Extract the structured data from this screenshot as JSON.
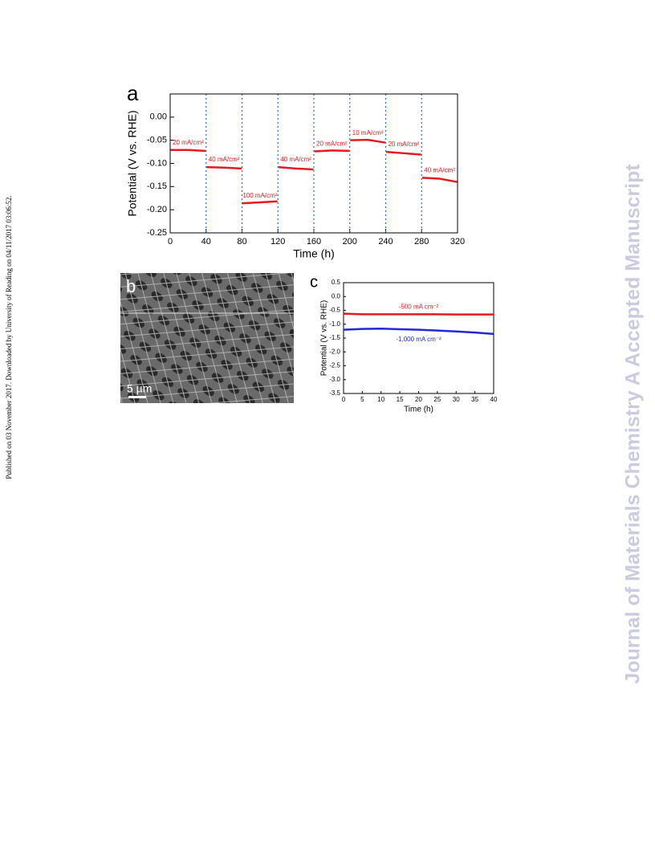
{
  "side_note": "Published on 03 November 2017. Downloaded by University of Reading on 04/11/2017 03:06:52.",
  "watermark": "Journal of Materials Chemistry A Accepted Manuscript",
  "image_panel": {
    "label": "b",
    "scale_bar": "5 µm"
  },
  "chart_data": [
    {
      "type": "line",
      "panel_label": "a",
      "xlabel": "Time (h)",
      "ylabel": "Potential (V vs. RHE)",
      "x": [
        0.5,
        20,
        39.5,
        40,
        40.5,
        60,
        79.5,
        80,
        80.5,
        100,
        119.5,
        120,
        120.5,
        140,
        159.5,
        160,
        160.5,
        180,
        199.5,
        200,
        200.5,
        220,
        239.5,
        240,
        240.5,
        260,
        279.5,
        280,
        280.5,
        300,
        319.5
      ],
      "series": [
        {
          "color": "#e41a1c",
          "values": [
            -0.071,
            -0.071,
            -0.073,
            null,
            -0.108,
            -0.109,
            -0.111,
            null,
            -0.186,
            -0.184,
            -0.182,
            null,
            -0.108,
            -0.111,
            -0.113,
            null,
            -0.074,
            -0.072,
            -0.073,
            null,
            -0.05,
            -0.049,
            -0.055,
            null,
            -0.075,
            -0.078,
            -0.081,
            null,
            -0.131,
            -0.133,
            -0.14
          ]
        }
      ],
      "annotations": [
        "20 mA/cm²",
        "40 mA/cm²",
        "100 mA/cm²",
        "40 mA/cm²",
        "20 mA/cm²",
        "10 mA/cm²",
        "20 mA/cm²",
        "40 mA/cm²"
      ],
      "xlim": [
        0,
        320
      ],
      "xticks": [
        0,
        40,
        80,
        120,
        160,
        200,
        240,
        280,
        320
      ],
      "ylim": [
        -0.25,
        0.05
      ],
      "yticks": [
        {
          "value": 0,
          "label": "0.00"
        },
        -0.05,
        {
          "value": -0.1,
          "label": "-0.10"
        },
        -0.15,
        {
          "value": -0.2,
          "label": "-0.20"
        },
        -0.25
      ],
      "dividers": true,
      "grid": false
    },
    {
      "type": "line",
      "panel_label": "c",
      "xlabel": "Time (h)",
      "ylabel": "Potential (V vs. RHE)",
      "x": [
        0,
        5,
        10,
        15,
        20,
        25,
        30,
        35,
        40
      ],
      "series": [
        {
          "name": "-500 mA cm⁻²",
          "color": "#e41a1c",
          "values": [
            -0.62,
            -0.64,
            -0.64,
            -0.64,
            -0.64,
            -0.64,
            -0.65,
            -0.65,
            -0.65
          ]
        },
        {
          "name": "-1,000 mA cm⁻²",
          "color": "#1f2ad6",
          "values": [
            -1.2,
            -1.17,
            -1.16,
            -1.18,
            -1.2,
            -1.23,
            -1.26,
            -1.3,
            -1.35
          ]
        }
      ],
      "xlim": [
        0,
        40
      ],
      "xticks": [
        0,
        5,
        10,
        15,
        20,
        25,
        30,
        35,
        40
      ],
      "ylim": [
        -3.5,
        0.5
      ],
      "yticks": [
        0.5,
        {
          "value": 0,
          "label": "0.0"
        },
        -0.5,
        {
          "value": -1,
          "label": "-1.0"
        },
        -1.5,
        {
          "value": -2,
          "label": "-2.0"
        },
        -2.5,
        {
          "value": -3,
          "label": "-3.0"
        },
        -3.5
      ],
      "dividers": false,
      "grid": false
    }
  ]
}
